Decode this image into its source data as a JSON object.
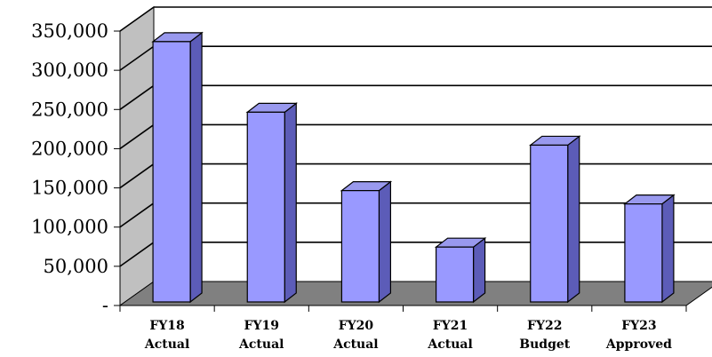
{
  "chart_data": {
    "type": "bar",
    "style": "3d-column",
    "categories": [
      [
        "FY18",
        "Actual"
      ],
      [
        "FY19",
        "Actual"
      ],
      [
        "FY20",
        "Actual"
      ],
      [
        "FY21",
        "Actual"
      ],
      [
        "FY22",
        "Budget"
      ],
      [
        "FY23",
        "Approved"
      ]
    ],
    "values": [
      332000,
      242000,
      142000,
      70000,
      200000,
      125000
    ],
    "ylim": [
      0,
      350000
    ],
    "yticks": [
      0,
      50000,
      100000,
      150000,
      200000,
      250000,
      300000,
      350000
    ],
    "ytick_labels": [
      "-",
      "50,000",
      "100,000",
      "150,000",
      "200,000",
      "250,000",
      "300,000",
      "350,000"
    ],
    "grid": true,
    "legend": "none",
    "colors": {
      "bar_front": "#9999ff",
      "bar_top": "#9999ee",
      "bar_side": "#5c5cb8",
      "back_wall": "#ffffff",
      "side_wall": "#c0c0c0",
      "floor": "#808080",
      "gridline": "#000000"
    }
  }
}
